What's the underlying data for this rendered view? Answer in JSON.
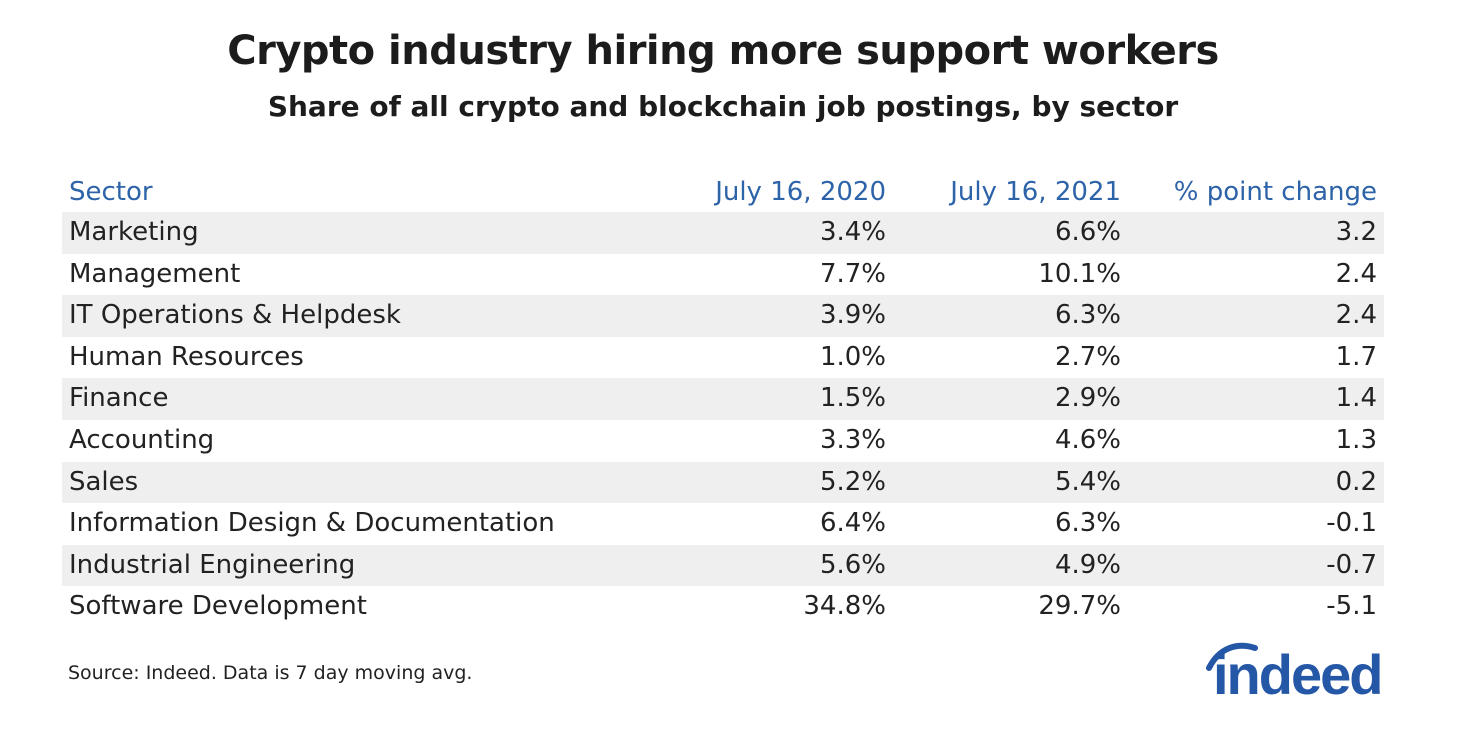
{
  "title": "Crypto industry hiring more support workers",
  "subtitle": "Share of all crypto and blockchain job postings, by sector",
  "source": "Source: Indeed. Data is 7 day moving avg.",
  "logo": {
    "text": "indeed",
    "color": "#2557a7"
  },
  "colors": {
    "header_text": "#2d63a8",
    "shaded_row": "#efefef"
  },
  "chart_data": {
    "type": "table",
    "title": "Crypto industry hiring more support workers",
    "subtitle": "Share of all crypto and blockchain job postings, by sector",
    "columns": [
      "Sector",
      "July 16, 2020",
      "July 16, 2021",
      "% point change"
    ],
    "rows": [
      [
        "Marketing",
        "3.4%",
        "6.6%",
        "3.2"
      ],
      [
        "Management",
        "7.7%",
        "10.1%",
        "2.4"
      ],
      [
        "IT Operations & Helpdesk",
        "3.9%",
        "6.3%",
        "2.4"
      ],
      [
        "Human Resources",
        "1.0%",
        "2.7%",
        "1.7"
      ],
      [
        "Finance",
        "1.5%",
        "2.9%",
        "1.4"
      ],
      [
        "Accounting",
        "3.3%",
        "4.6%",
        "1.3"
      ],
      [
        "Sales",
        "5.2%",
        "5.4%",
        "0.2"
      ],
      [
        "Information Design & Documentation",
        "6.4%",
        "6.3%",
        "-0.1"
      ],
      [
        "Industrial Engineering",
        "5.6%",
        "4.9%",
        "-0.7"
      ],
      [
        "Software Development",
        "34.8%",
        "29.7%",
        "-5.1"
      ]
    ]
  }
}
